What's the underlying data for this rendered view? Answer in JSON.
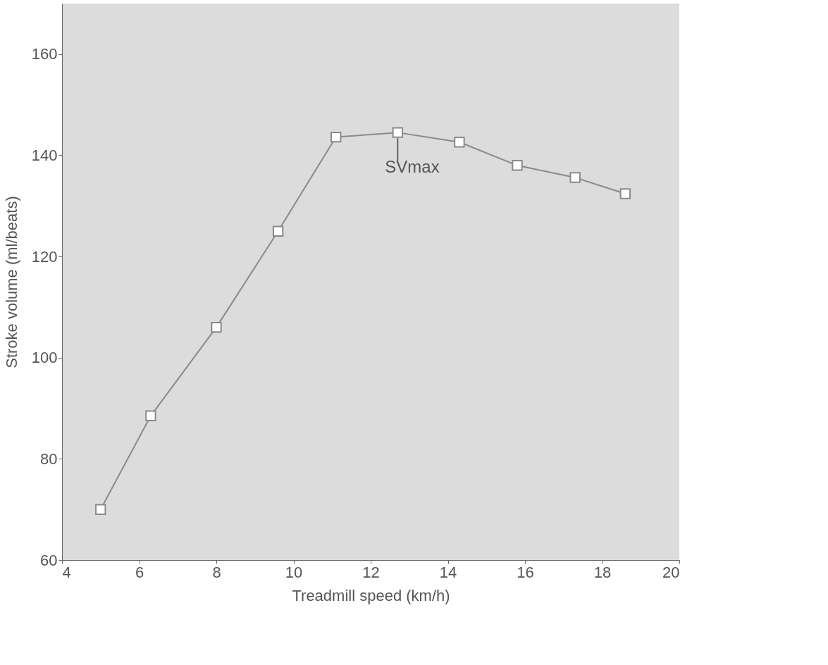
{
  "chart_data": {
    "type": "line",
    "xlabel": "Treadmill speed (km/h)",
    "ylabel": "Stroke volume (ml/beats)",
    "x": [
      5.0,
      6.3,
      8.0,
      9.6,
      11.1,
      12.7,
      14.3,
      15.8,
      17.3,
      18.6
    ],
    "series": [
      {
        "color": "#8a8a8a",
        "values": [
          70,
          88.5,
          106,
          125,
          143.6,
          144.5,
          142.6,
          138,
          135.6,
          132.4
        ]
      }
    ],
    "xlim": [
      4,
      20
    ],
    "xticks": [
      4,
      6,
      8,
      10,
      12,
      14,
      16,
      18,
      20
    ],
    "ylim": [
      60,
      170
    ],
    "yticks": [
      60,
      80,
      100,
      120,
      140,
      160
    ],
    "marker": "square",
    "line_style": "solid",
    "grid": false,
    "annotations": [
      {
        "text": "SVmax",
        "x": 12.7,
        "y": 144.5
      }
    ]
  }
}
